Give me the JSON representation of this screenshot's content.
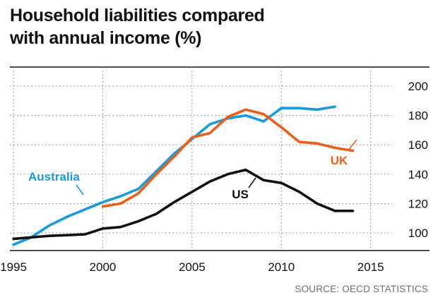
{
  "title_line1": "Household liabilities compared",
  "title_line2": "with annual income (%)",
  "source": "SOURCE: OECD STATISTICS",
  "chart_data": {
    "type": "line",
    "title": "Household liabilities compared with annual income (%)",
    "xlabel": "",
    "ylabel": "",
    "xlim": [
      1994.8,
      2016.2
    ],
    "ylim": [
      88,
      213
    ],
    "x_ticks": [
      1995,
      2000,
      2005,
      2010,
      2015
    ],
    "y_ticks": [
      100,
      120,
      140,
      160,
      180,
      200
    ],
    "y_axis_side": "right",
    "grid": "horizontal dashed",
    "series": [
      {
        "name": "Australia",
        "color": "#1a9bd7",
        "x": [
          1995,
          1996,
          1997,
          1998,
          1999,
          2000,
          2001,
          2002,
          2003,
          2004,
          2005,
          2006,
          2007,
          2008,
          2009,
          2010,
          2011,
          2012,
          2013
        ],
        "y": [
          92,
          97,
          105,
          111,
          116,
          121,
          125,
          130,
          142,
          154,
          164,
          174,
          178,
          180,
          176,
          185,
          185,
          184,
          186
        ]
      },
      {
        "name": "UK",
        "color": "#e8601c",
        "x": [
          2000,
          2001,
          2002,
          2003,
          2004,
          2005,
          2006,
          2007,
          2008,
          2009,
          2010,
          2011,
          2012,
          2013,
          2014
        ],
        "y": [
          118,
          120,
          127,
          140,
          152,
          165,
          168,
          179,
          184,
          181,
          172,
          162,
          161,
          158,
          156
        ]
      },
      {
        "name": "US",
        "color": "#111111",
        "x": [
          1995,
          1996,
          1997,
          1998,
          1999,
          2000,
          2001,
          2002,
          2003,
          2004,
          2005,
          2006,
          2007,
          2008,
          2009,
          2010,
          2011,
          2012,
          2013,
          2014
        ],
        "y": [
          96,
          97,
          98,
          98.5,
          99,
          103,
          104,
          108,
          113,
          121,
          128,
          135,
          140,
          143,
          136,
          134,
          128,
          120,
          115,
          115
        ]
      }
    ]
  }
}
